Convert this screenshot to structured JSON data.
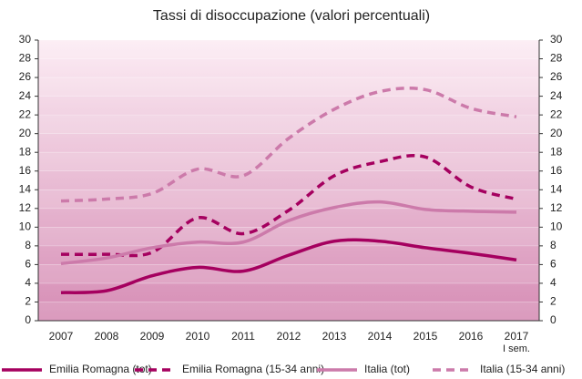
{
  "chart_data": {
    "type": "line",
    "title": "Tassi di disoccupazione (valori percentuali)",
    "categories": [
      "2007",
      "2008",
      "2009",
      "2010",
      "2011",
      "2012",
      "2013",
      "2014",
      "2015",
      "2016",
      "2017"
    ],
    "x_note": "I sem.",
    "series": [
      {
        "name": "Emilia Romagna (tot)",
        "color": "#a5005f",
        "dashed": false,
        "values": [
          3.0,
          3.2,
          4.8,
          5.7,
          5.3,
          7.0,
          8.5,
          8.5,
          7.8,
          7.2,
          6.5
        ]
      },
      {
        "name": "Emilia Romagna (15-34 anni)",
        "color": "#a5005f",
        "dashed": true,
        "values": [
          7.1,
          7.1,
          7.3,
          11.0,
          9.3,
          11.8,
          15.5,
          17.0,
          17.5,
          14.3,
          13.0
        ]
      },
      {
        "name": "Italia (tot)",
        "color": "#cc7aaa",
        "dashed": false,
        "values": [
          6.1,
          6.7,
          7.8,
          8.4,
          8.4,
          10.7,
          12.1,
          12.7,
          11.9,
          11.7,
          11.6
        ]
      },
      {
        "name": "Italia (15-34 anni)",
        "color": "#cc7aaa",
        "dashed": true,
        "values": [
          12.8,
          13.0,
          13.6,
          16.2,
          15.5,
          19.5,
          22.6,
          24.5,
          24.7,
          22.7,
          21.8
        ]
      }
    ],
    "ylim": [
      0,
      30
    ],
    "yticks": [
      0,
      2,
      4,
      6,
      8,
      10,
      12,
      14,
      16,
      18,
      20,
      22,
      24,
      26,
      28,
      30
    ],
    "y2lim": [
      0,
      30
    ],
    "y2ticks": [
      0,
      2,
      4,
      6,
      8,
      10,
      12,
      14,
      16,
      18,
      20,
      22,
      24,
      26,
      28,
      30
    ],
    "grid": true
  }
}
